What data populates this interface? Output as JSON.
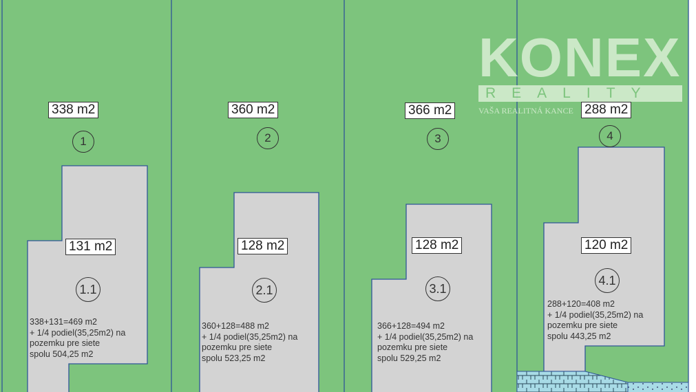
{
  "colors": {
    "lawn": "#7dc47d",
    "building": "#d3d3d3",
    "boundary": "#2f5597",
    "utility": "#a8dbe6"
  },
  "logo": {
    "brand": "KONEX",
    "sub": "REALITY",
    "tagline": "VAŠA REALITNÁ KANCE"
  },
  "plots": [
    {
      "number": "1",
      "area": "338 m2",
      "building_number": "1.1",
      "building_area": "131 m2",
      "note": "338+131=469 m2\n+ 1/4 podiel(35,25m2) na\npozemku pre siete\nspolu 504,25 m2"
    },
    {
      "number": "2",
      "area": "360 m2",
      "building_number": "2.1",
      "building_area": "128 m2",
      "note": "360+128=488 m2\n+ 1/4 podiel(35,25m2) na\npozemku pre siete\nspolu 523,25 m2"
    },
    {
      "number": "3",
      "area": "366 m2",
      "building_number": "3.1",
      "building_area": "128 m2",
      "note": "366+128=494 m2\n+ 1/4 podiel(35,25m2) na\npozemku pre siete\nspolu 529,25 m2"
    },
    {
      "number": "4",
      "area": "288 m2",
      "building_number": "4.1",
      "building_area": "120 m2",
      "note": "288+120=408 m2\n+ 1/4 podiel(35,25m2) na\npozemku pre siete\nspolu 443,25 m2"
    }
  ]
}
